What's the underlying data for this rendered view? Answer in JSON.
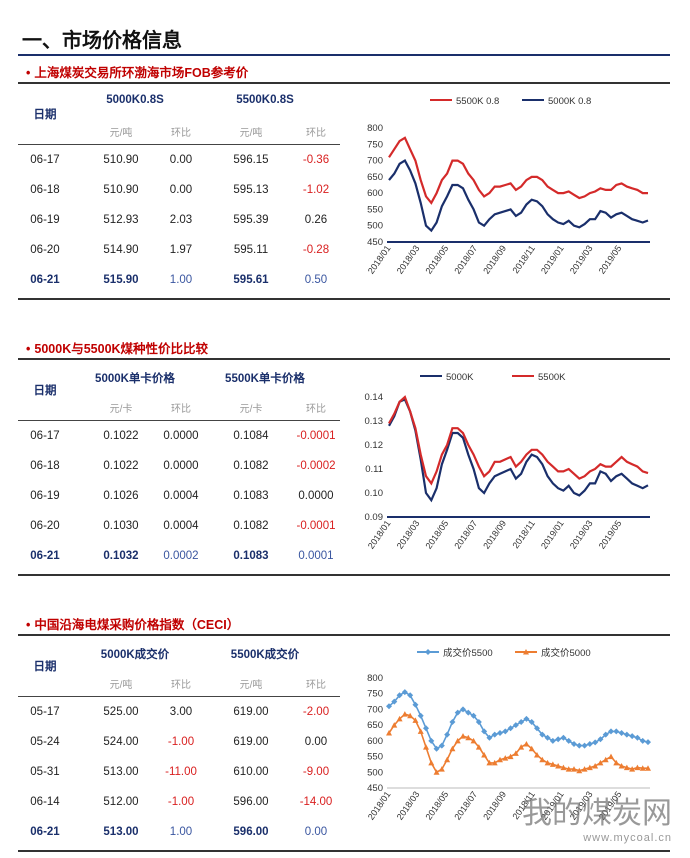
{
  "page_title": "一、市场价格信息",
  "sections": [
    {
      "heading": "上海煤炭交易所环渤海市场FOB参考价",
      "col_date": "日期",
      "group1": "5000K0.8S",
      "group2": "5500K0.8S",
      "units": [
        "元/吨",
        "环比",
        "元/吨",
        "环比"
      ],
      "rows": [
        [
          "06-17",
          "510.90",
          "0.00",
          "596.15",
          "-0.36"
        ],
        [
          "06-18",
          "510.90",
          "0.00",
          "595.13",
          "-1.02"
        ],
        [
          "06-19",
          "512.93",
          "2.03",
          "595.39",
          "0.26"
        ],
        [
          "06-20",
          "514.90",
          "1.97",
          "595.11",
          "-0.28"
        ],
        [
          "06-21",
          "515.90",
          "1.00",
          "595.61",
          "0.50"
        ]
      ]
    },
    {
      "heading": "5000K与5500K煤种性价比比较",
      "col_date": "日期",
      "group1": "5000K单卡价格",
      "group2": "5500K单卡价格",
      "units": [
        "元/卡",
        "环比",
        "元/卡",
        "环比"
      ],
      "rows": [
        [
          "06-17",
          "0.1022",
          "0.0000",
          "0.1084",
          "-0.0001"
        ],
        [
          "06-18",
          "0.1022",
          "0.0000",
          "0.1082",
          "-0.0002"
        ],
        [
          "06-19",
          "0.1026",
          "0.0004",
          "0.1083",
          "0.0000"
        ],
        [
          "06-20",
          "0.1030",
          "0.0004",
          "0.1082",
          "-0.0001"
        ],
        [
          "06-21",
          "0.1032",
          "0.0002",
          "0.1083",
          "0.0001"
        ]
      ]
    },
    {
      "heading": "中国沿海电煤采购价格指数（CECI）",
      "col_date": "日期",
      "group1": "5000K成交价",
      "group2": "5500K成交价",
      "units": [
        "元/吨",
        "环比",
        "元/吨",
        "环比"
      ],
      "rows": [
        [
          "05-17",
          "525.00",
          "3.00",
          "619.00",
          "-2.00"
        ],
        [
          "05-24",
          "524.00",
          "-1.00",
          "619.00",
          "0.00"
        ],
        [
          "05-31",
          "513.00",
          "-11.00",
          "610.00",
          "-9.00"
        ],
        [
          "06-14",
          "512.00",
          "-1.00",
          "596.00",
          "-14.00"
        ],
        [
          "06-21",
          "513.00",
          "1.00",
          "596.00",
          "0.00"
        ]
      ]
    }
  ],
  "chart_data": [
    {
      "type": "line",
      "x_ticks": [
        "2018/01",
        "2018/03",
        "2018/05",
        "2018/07",
        "2018/09",
        "2018/11",
        "2019/01",
        "2019/03",
        "2019/05"
      ],
      "ylim": [
        450,
        800
      ],
      "y_ticks": [
        450,
        500,
        550,
        600,
        650,
        700,
        750,
        800
      ],
      "legend_position": "top",
      "series": [
        {
          "name": "5500K 0.8",
          "color": "#d42a2a",
          "values": [
            710,
            735,
            760,
            770,
            735,
            700,
            640,
            590,
            570,
            600,
            640,
            660,
            700,
            700,
            690,
            660,
            640,
            610,
            590,
            600,
            620,
            620,
            625,
            630,
            610,
            620,
            640,
            650,
            650,
            640,
            620,
            610,
            600,
            600,
            605,
            595,
            585,
            590,
            600,
            605,
            615,
            610,
            610,
            625,
            630,
            620,
            615,
            610,
            600,
            600
          ]
        },
        {
          "name": "5000K 0.8",
          "color": "#1a2f6b",
          "values": [
            640,
            660,
            690,
            700,
            670,
            630,
            570,
            500,
            485,
            510,
            560,
            590,
            625,
            625,
            615,
            580,
            550,
            510,
            500,
            520,
            535,
            540,
            545,
            550,
            530,
            540,
            565,
            580,
            575,
            560,
            535,
            520,
            510,
            505,
            515,
            500,
            495,
            505,
            520,
            520,
            545,
            540,
            525,
            535,
            540,
            530,
            520,
            515,
            510,
            516
          ]
        }
      ]
    },
    {
      "type": "line",
      "x_ticks": [
        "2018/01",
        "2018/03",
        "2018/05",
        "2018/07",
        "2018/09",
        "2018/11",
        "2019/01",
        "2019/03",
        "2019/05"
      ],
      "ylim": [
        0.09,
        0.14
      ],
      "y_ticks": [
        0.09,
        0.1,
        0.11,
        0.12,
        0.13,
        0.14
      ],
      "legend_position": "top",
      "series": [
        {
          "name": "5000K",
          "color": "#1a2f6b",
          "values": [
            0.128,
            0.132,
            0.138,
            0.139,
            0.134,
            0.126,
            0.114,
            0.1,
            0.097,
            0.102,
            0.112,
            0.118,
            0.125,
            0.125,
            0.123,
            0.116,
            0.11,
            0.102,
            0.1,
            0.104,
            0.107,
            0.108,
            0.109,
            0.11,
            0.106,
            0.108,
            0.113,
            0.116,
            0.115,
            0.112,
            0.107,
            0.104,
            0.102,
            0.101,
            0.103,
            0.1,
            0.099,
            0.101,
            0.104,
            0.104,
            0.109,
            0.108,
            0.105,
            0.107,
            0.108,
            0.106,
            0.104,
            0.103,
            0.102,
            0.1032
          ]
        },
        {
          "name": "5500K",
          "color": "#d42a2a",
          "values": [
            0.129,
            0.133,
            0.138,
            0.14,
            0.134,
            0.127,
            0.116,
            0.107,
            0.104,
            0.109,
            0.116,
            0.12,
            0.127,
            0.127,
            0.125,
            0.12,
            0.116,
            0.111,
            0.107,
            0.109,
            0.113,
            0.113,
            0.114,
            0.115,
            0.111,
            0.113,
            0.116,
            0.118,
            0.118,
            0.116,
            0.113,
            0.111,
            0.109,
            0.109,
            0.11,
            0.108,
            0.106,
            0.107,
            0.109,
            0.11,
            0.112,
            0.111,
            0.111,
            0.113,
            0.115,
            0.113,
            0.112,
            0.111,
            0.109,
            0.1083
          ]
        }
      ]
    },
    {
      "type": "line",
      "x_ticks": [
        "2018/01",
        "2018/03",
        "2018/05",
        "2018/07",
        "2018/09",
        "2018/11",
        "2019/01",
        "2019/03",
        "2019/05"
      ],
      "ylim": [
        450,
        800
      ],
      "y_ticks": [
        450,
        500,
        550,
        600,
        650,
        700,
        750,
        800
      ],
      "legend_position": "top",
      "series": [
        {
          "name": "成交价5500",
          "color": "#5b9bd5",
          "marker": "diamond",
          "values": [
            710,
            725,
            745,
            755,
            745,
            715,
            680,
            640,
            600,
            575,
            585,
            620,
            660,
            690,
            700,
            690,
            680,
            660,
            630,
            610,
            620,
            625,
            630,
            640,
            650,
            660,
            670,
            660,
            640,
            620,
            610,
            600,
            605,
            610,
            600,
            590,
            585,
            585,
            590,
            595,
            605,
            620,
            630,
            630,
            625,
            620,
            615,
            610,
            600,
            596
          ]
        },
        {
          "name": "成交价5000",
          "color": "#ed7d31",
          "marker": "triangle",
          "values": [
            625,
            650,
            670,
            685,
            680,
            665,
            630,
            580,
            530,
            500,
            510,
            540,
            575,
            600,
            615,
            610,
            600,
            580,
            555,
            530,
            530,
            540,
            545,
            550,
            560,
            580,
            590,
            575,
            555,
            540,
            530,
            525,
            520,
            515,
            510,
            510,
            505,
            510,
            515,
            520,
            530,
            540,
            550,
            530,
            520,
            515,
            510,
            515,
            513,
            513
          ]
        }
      ]
    }
  ],
  "watermark": {
    "text": "我的煤炭网",
    "url_text": "www.mycoal.cn"
  }
}
